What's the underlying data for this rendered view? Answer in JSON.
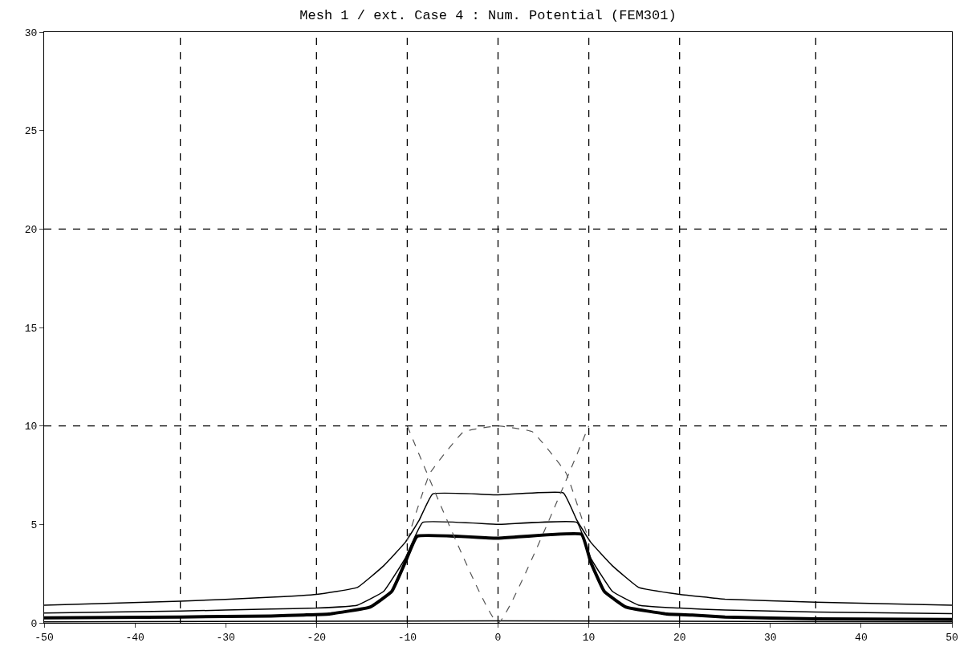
{
  "chart_data": {
    "type": "line",
    "title": "Mesh 1 / ext. Case 4 : Num. Potential (FEM301)",
    "xlim": [
      -50,
      50
    ],
    "ylim": [
      0,
      30
    ],
    "xticks": [
      -50,
      -40,
      -30,
      -20,
      -10,
      0,
      10,
      20,
      30,
      40,
      50
    ],
    "yticks": [
      0,
      5,
      10,
      15,
      20,
      25,
      30
    ],
    "ref_lines": [
      {
        "axis": "y",
        "value": 10,
        "color": "#000000",
        "line_style": "dashed"
      },
      {
        "axis": "y",
        "value": 20,
        "color": "#000000",
        "line_style": "dashed"
      },
      {
        "axis": "x",
        "value": -35,
        "color": "#000000",
        "line_style": "dashed"
      },
      {
        "axis": "x",
        "value": -20,
        "color": "#000000",
        "line_style": "dashed"
      },
      {
        "axis": "x",
        "value": -10,
        "color": "#000000",
        "line_style": "dashed"
      },
      {
        "axis": "x",
        "value": 0,
        "color": "#000000",
        "line_style": "dashed"
      },
      {
        "axis": "x",
        "value": 10,
        "color": "#000000",
        "line_style": "dashed"
      },
      {
        "axis": "x",
        "value": 20,
        "color": "#000000",
        "line_style": "dashed"
      },
      {
        "axis": "x",
        "value": 35,
        "color": "#000000",
        "line_style": "dashed"
      }
    ],
    "series": [
      {
        "color": "#000000",
        "line_style": "solid",
        "x": [
          -50,
          -35,
          -25,
          -20,
          -15.5,
          -12.6,
          -10.2,
          -8.7,
          -7.2,
          0,
          7.2,
          8.7,
          10.2,
          12.6,
          15.5,
          20,
          25,
          35,
          50
        ],
        "values": [
          0.9,
          1.1,
          1.3,
          1.45,
          1.8,
          2.9,
          4.1,
          5.2,
          6.55,
          6.5,
          6.6,
          5.2,
          4.1,
          2.9,
          1.8,
          1.45,
          1.2,
          1.05,
          0.9
        ]
      },
      {
        "color": "#000000",
        "line_style": "solid",
        "x": [
          -50,
          -35,
          -25,
          -20,
          -15.5,
          -12.6,
          -10.2,
          -8.3,
          0,
          8.7,
          10.2,
          12.6,
          15.5,
          20,
          25,
          35,
          50
        ],
        "values": [
          0.5,
          0.6,
          0.7,
          0.75,
          0.9,
          1.6,
          3.3,
          5.1,
          5.0,
          5.1,
          3.3,
          1.6,
          0.9,
          0.75,
          0.65,
          0.55,
          0.47
        ]
      },
      {
        "color": "#000000",
        "line_style": "solid",
        "x": [
          -50,
          -35,
          -25,
          -21.4,
          -18.6,
          -14.1,
          -11.7,
          -10.2,
          -8.9,
          0,
          9.2,
          10.2,
          11.7,
          14.1,
          18.6,
          21.4,
          25,
          35,
          50
        ],
        "values": [
          0.25,
          0.3,
          0.35,
          0.4,
          0.45,
          0.8,
          1.6,
          3.1,
          4.4,
          4.3,
          4.5,
          3.1,
          1.6,
          0.8,
          0.45,
          0.4,
          0.3,
          0.2,
          0.17
        ]
      },
      {
        "color": "#000000",
        "line_style": "solid",
        "x": [
          -50,
          0,
          50
        ],
        "values": [
          0.05,
          0.1,
          0.05
        ]
      },
      {
        "color": "#555555",
        "line_style": "dashed",
        "x": [
          -10,
          -7.5,
          -3.8,
          0,
          3.8,
          7.5,
          10
        ],
        "values": [
          4.2,
          7.6,
          9.7,
          10,
          9.7,
          7.6,
          4.2
        ]
      },
      {
        "color": "#555555",
        "line_style": "dashed",
        "x": [
          -10,
          0,
          10
        ],
        "values": [
          10,
          0,
          10
        ]
      }
    ]
  }
}
